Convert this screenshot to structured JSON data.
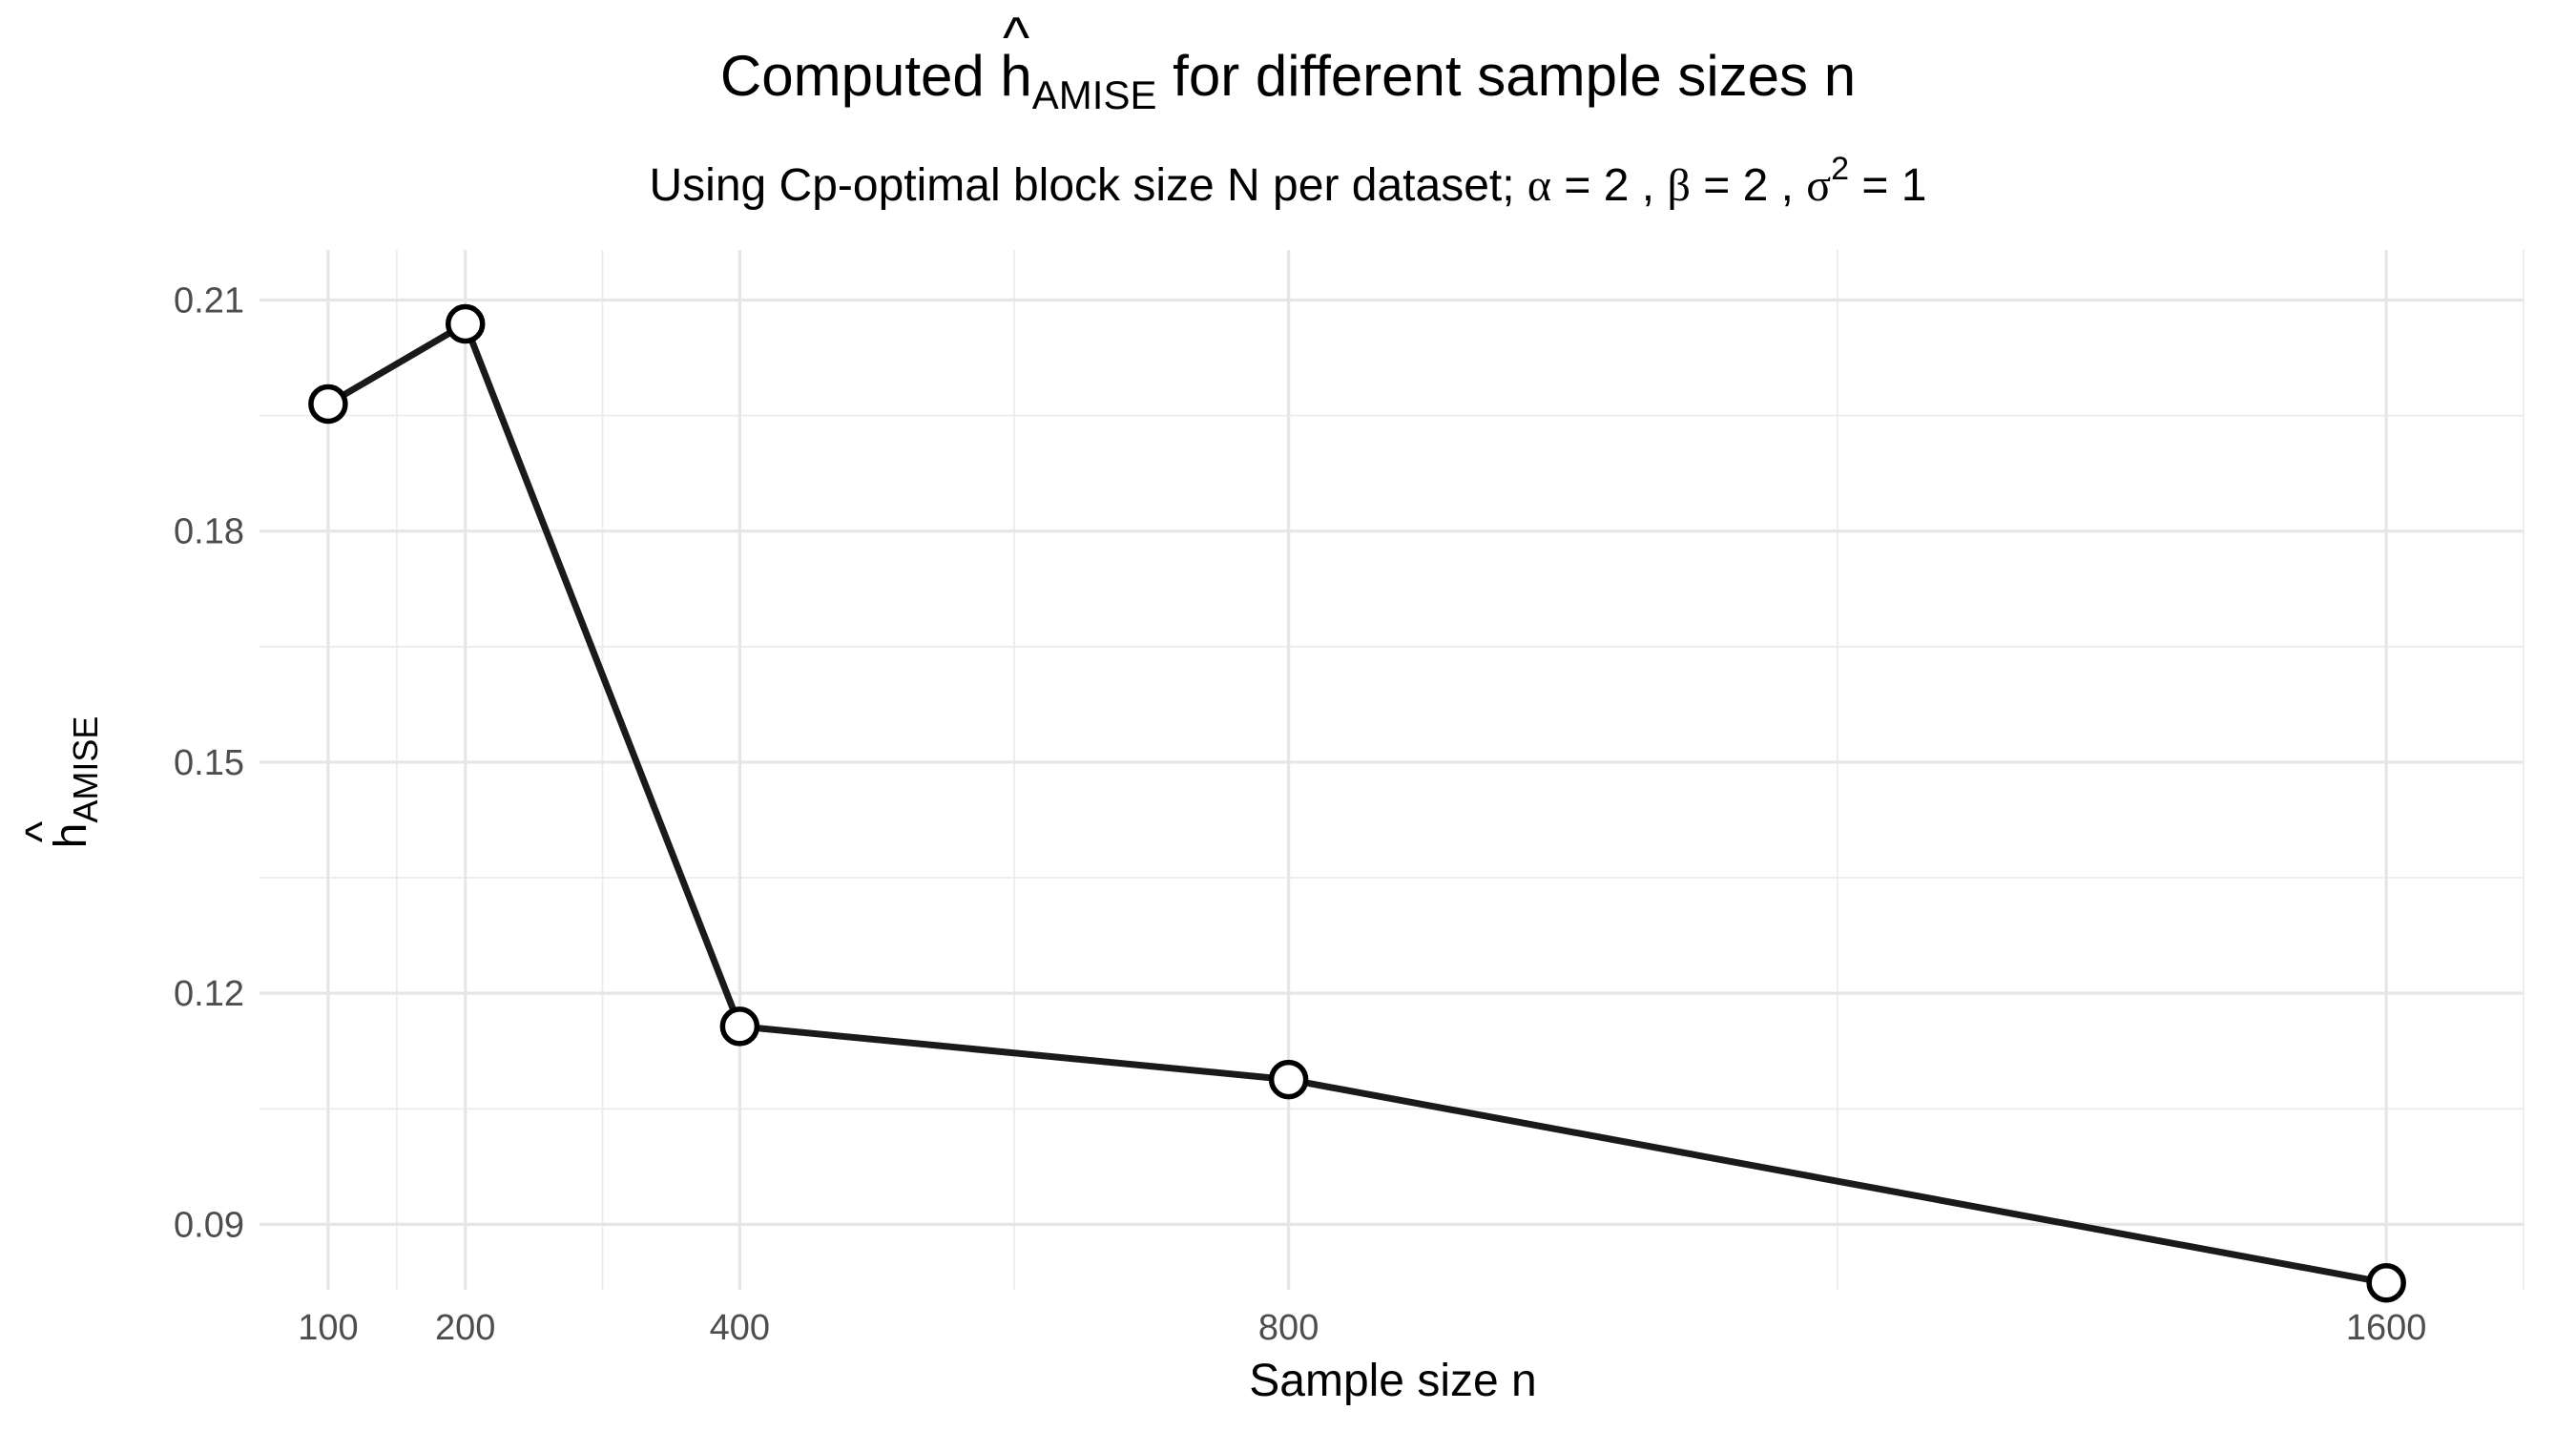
{
  "chart_data": {
    "type": "line",
    "title": {
      "prefix": "Computed ",
      "symbol": "h",
      "hat": "^",
      "subscript": "AMISE",
      "suffix": " for different sample sizes n"
    },
    "subtitle": {
      "lead": "Using Cp-optimal block size N per dataset; ",
      "alpha_symbol": "α",
      "alpha_value": " = 2 , ",
      "beta_symbol": "β",
      "beta_value": " = 2 , ",
      "sigma_symbol": "σ",
      "sigma_power": "2",
      "sigma_value": " = 1"
    },
    "xlabel": "Sample size n",
    "ylabel": {
      "symbol": "h",
      "hat": "^",
      "subscript": "AMISE"
    },
    "x": [
      100,
      200,
      400,
      800,
      1600
    ],
    "y": [
      0.1965,
      0.2069,
      0.1157,
      0.1088,
      0.0824
    ],
    "xlim": [
      50,
      1700
    ],
    "ylim": [
      0.0815,
      0.2165
    ],
    "x_ticks": [
      100,
      200,
      400,
      800,
      1600
    ],
    "x_tick_labels": [
      "100",
      "200",
      "400",
      "800",
      "1600"
    ],
    "x_minor_ticks": [
      0,
      150,
      300,
      600,
      1200,
      1700
    ],
    "y_ticks": [
      0.09,
      0.12,
      0.15,
      0.18,
      0.21
    ],
    "y_tick_labels": [
      "0.09",
      "0.12",
      "0.15",
      "0.18",
      "0.21"
    ],
    "y_minor_ticks": [
      0.105,
      0.135,
      0.165,
      0.195
    ],
    "grid": true,
    "legend": "none",
    "colors": {
      "line": "#1a1a1a",
      "point_fill": "#ffffff",
      "point_stroke": "#000000",
      "grid": "#e6e6e6"
    }
  }
}
